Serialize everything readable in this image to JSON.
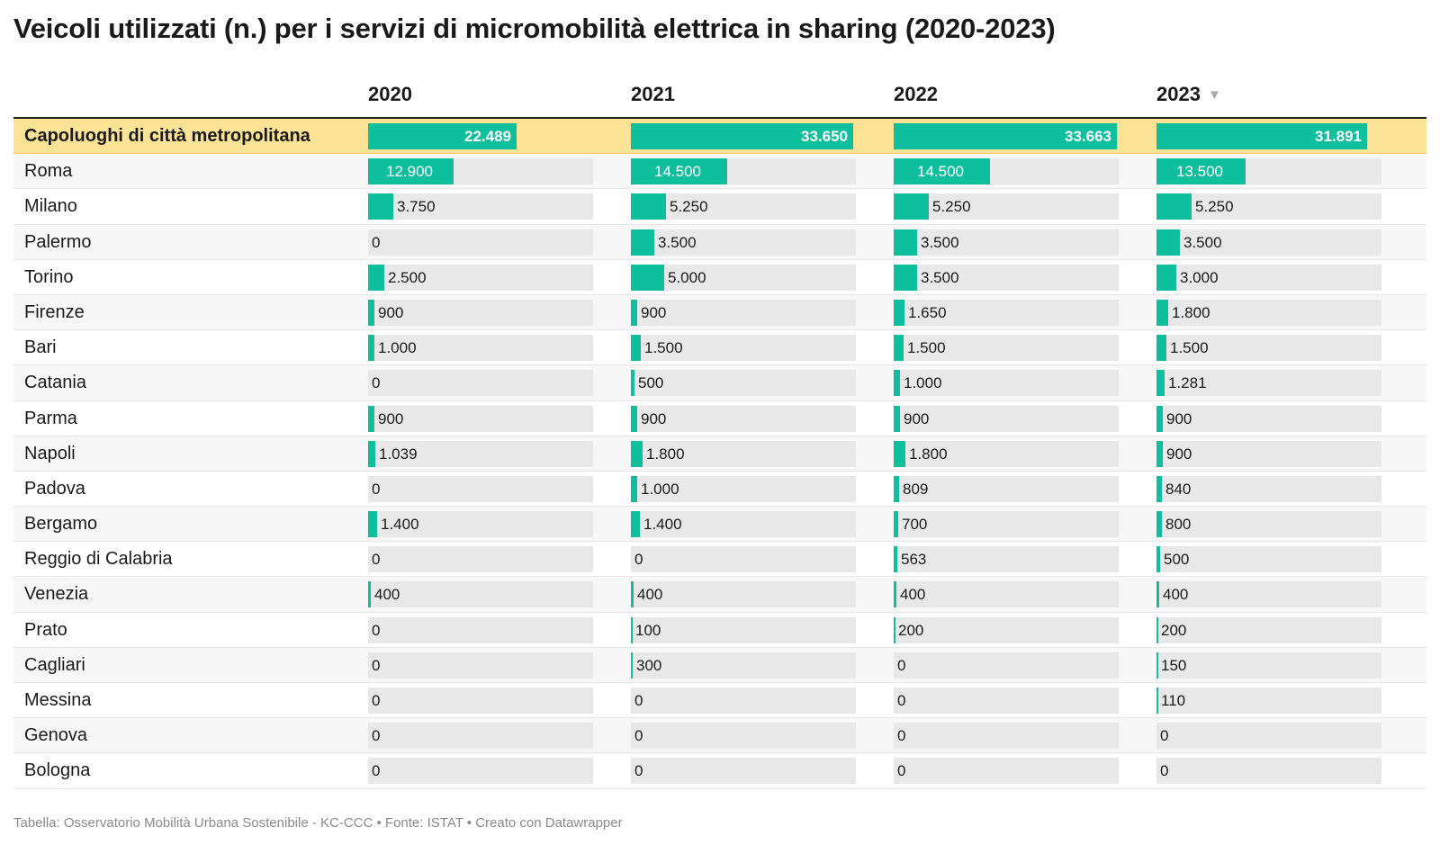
{
  "title": "Veicoli utilizzati (n.) per i servizi di micromobilità elettrica in sharing (2020-2023)",
  "footer": "Tabella: Osservatorio Mobilità Urbana Sostenibile - KC-CCC • Fonte: ISTAT • Creato con Datawrapper",
  "sort_icon": "▼",
  "colors": {
    "bar": "#0ebf9e",
    "track": "#e8e8e8",
    "highlight_row": "#fde396"
  },
  "chart_data": {
    "type": "table",
    "categories": [
      "2020",
      "2021",
      "2022",
      "2023"
    ],
    "sorted_by": "2023",
    "highlight_row": "Capoluoghi di città metropolitana",
    "rows": [
      {
        "label": "Capoluoghi di città metropolitana",
        "values": [
          22489,
          33650,
          33663,
          31891
        ],
        "display": [
          "22.489",
          "33.650",
          "33.663",
          "31.891"
        ]
      },
      {
        "label": "Roma",
        "values": [
          12900,
          14500,
          14500,
          13500
        ],
        "display": [
          "12.900",
          "14.500",
          "14.500",
          "13.500"
        ]
      },
      {
        "label": "Milano",
        "values": [
          3750,
          5250,
          5250,
          5250
        ],
        "display": [
          "3.750",
          "5.250",
          "5.250",
          "5.250"
        ]
      },
      {
        "label": "Palermo",
        "values": [
          0,
          3500,
          3500,
          3500
        ],
        "display": [
          "0",
          "3.500",
          "3.500",
          "3.500"
        ]
      },
      {
        "label": "Torino",
        "values": [
          2500,
          5000,
          3500,
          3000
        ],
        "display": [
          "2.500",
          "5.000",
          "3.500",
          "3.000"
        ]
      },
      {
        "label": "Firenze",
        "values": [
          900,
          900,
          1650,
          1800
        ],
        "display": [
          "900",
          "900",
          "1.650",
          "1.800"
        ]
      },
      {
        "label": "Bari",
        "values": [
          1000,
          1500,
          1500,
          1500
        ],
        "display": [
          "1.000",
          "1.500",
          "1.500",
          "1.500"
        ]
      },
      {
        "label": "Catania",
        "values": [
          0,
          500,
          1000,
          1281
        ],
        "display": [
          "0",
          "500",
          "1.000",
          "1.281"
        ]
      },
      {
        "label": "Parma",
        "values": [
          900,
          900,
          900,
          900
        ],
        "display": [
          "900",
          "900",
          "900",
          "900"
        ]
      },
      {
        "label": "Napoli",
        "values": [
          1039,
          1800,
          1800,
          900
        ],
        "display": [
          "1.039",
          "1.800",
          "1.800",
          "900"
        ]
      },
      {
        "label": "Padova",
        "values": [
          0,
          1000,
          809,
          840
        ],
        "display": [
          "0",
          "1.000",
          "809",
          "840"
        ]
      },
      {
        "label": "Bergamo",
        "values": [
          1400,
          1400,
          700,
          800
        ],
        "display": [
          "1.400",
          "1.400",
          "700",
          "800"
        ]
      },
      {
        "label": "Reggio di Calabria",
        "values": [
          0,
          0,
          563,
          500
        ],
        "display": [
          "0",
          "0",
          "563",
          "500"
        ]
      },
      {
        "label": "Venezia",
        "values": [
          400,
          400,
          400,
          400
        ],
        "display": [
          "400",
          "400",
          "400",
          "400"
        ]
      },
      {
        "label": "Prato",
        "values": [
          0,
          100,
          200,
          200
        ],
        "display": [
          "0",
          "100",
          "200",
          "200"
        ]
      },
      {
        "label": "Cagliari",
        "values": [
          0,
          300,
          0,
          150
        ],
        "display": [
          "0",
          "300",
          "0",
          "150"
        ]
      },
      {
        "label": "Messina",
        "values": [
          0,
          0,
          0,
          110
        ],
        "display": [
          "0",
          "0",
          "0",
          "110"
        ]
      },
      {
        "label": "Genova",
        "values": [
          0,
          0,
          0,
          0
        ],
        "display": [
          "0",
          "0",
          "0",
          "0"
        ]
      },
      {
        "label": "Bologna",
        "values": [
          0,
          0,
          0,
          0
        ],
        "display": [
          "0",
          "0",
          "0",
          "0"
        ]
      }
    ]
  }
}
